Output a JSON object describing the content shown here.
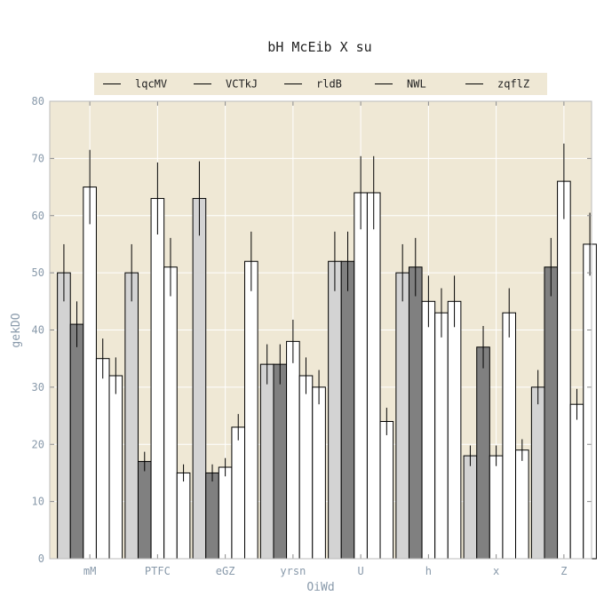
{
  "chart_data": {
    "type": "bar",
    "title": "bH McEib X su",
    "xlabel": "OiWd",
    "ylabel": "gekDO",
    "ylim": [
      0,
      80
    ],
    "yticks": [
      0,
      10,
      20,
      30,
      40,
      50,
      60,
      70,
      80
    ],
    "grid": true,
    "legend_position": "top",
    "categories": [
      "mM",
      "PTFC",
      "eGZ",
      "yrsn",
      "U",
      "h",
      "x",
      "Z"
    ],
    "series": [
      {
        "name": "lqcMV",
        "color": "#d3d3d3",
        "values": [
          50,
          50,
          63,
          34,
          52,
          50,
          18,
          30
        ],
        "errors": [
          5,
          5,
          6.5,
          3.5,
          5.2,
          5,
          1.8,
          3
        ]
      },
      {
        "name": "VCTkJ",
        "color": "#808080",
        "values": [
          41,
          17,
          15,
          34,
          52,
          51,
          37,
          51
        ],
        "errors": [
          4,
          1.7,
          1.5,
          3.5,
          5.2,
          5.1,
          3.7,
          5.1
        ]
      },
      {
        "name": "rldB",
        "color": "#ffffff",
        "values": [
          65,
          63,
          16,
          38,
          64,
          45,
          18,
          66
        ],
        "errors": [
          6.5,
          6.3,
          1.6,
          3.8,
          6.4,
          4.5,
          1.8,
          6.6
        ]
      },
      {
        "name": "NWL",
        "color": "#ffffff",
        "values": [
          35,
          51,
          23,
          32,
          64,
          43,
          43,
          27
        ],
        "errors": [
          3.5,
          5.1,
          2.3,
          3.2,
          6.4,
          4.3,
          4.3,
          2.7
        ]
      },
      {
        "name": "zqflZ",
        "color": "#ffffff",
        "values": [
          32,
          15,
          52,
          30,
          24,
          45,
          19,
          55
        ],
        "errors": [
          3.2,
          1.5,
          5.2,
          3,
          2.4,
          4.5,
          1.9,
          5.5
        ]
      }
    ],
    "colors": {
      "plot_bg": "#efe8d5",
      "grid": "#ffffff",
      "axis_text": "#8899aa",
      "bar_edge": "#000000"
    }
  }
}
